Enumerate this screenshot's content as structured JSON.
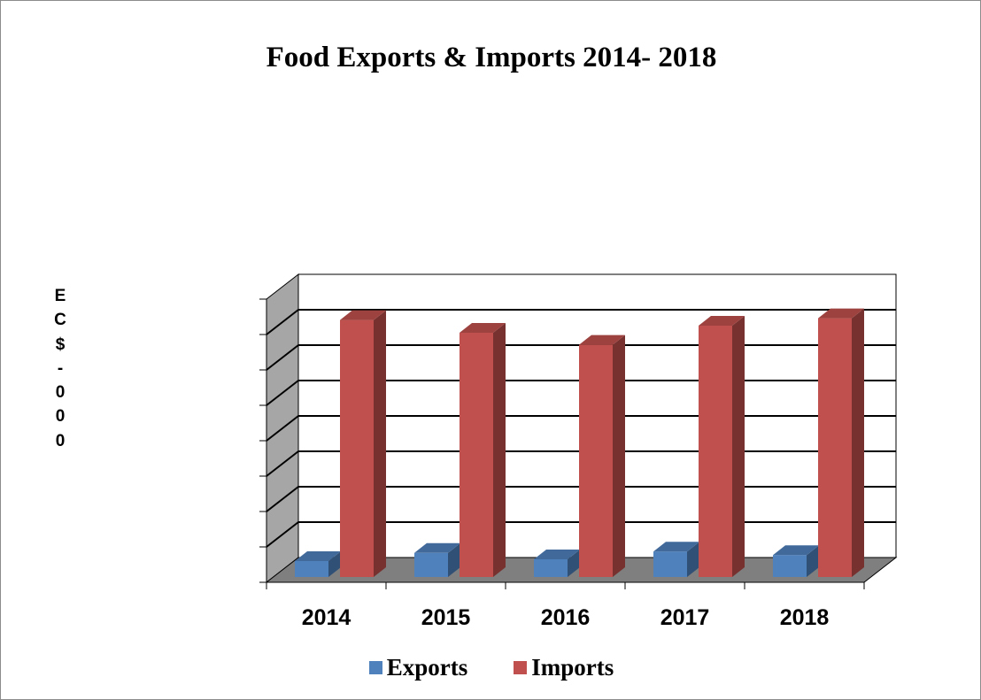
{
  "chart_data": {
    "type": "bar",
    "title": "Food Exports & Imports 2014- 2018",
    "xlabel": "",
    "ylabel": "EC$-000",
    "categories": [
      "2014",
      "2015",
      "2016",
      "2017",
      "2018"
    ],
    "series": [
      {
        "name": "Exports",
        "color": "#4f81bd",
        "values": [
          4.5,
          6.8,
          5.0,
          7.2,
          6.2
        ]
      },
      {
        "name": "Imports",
        "color": "#c0504d",
        "values": [
          72.6,
          69.0,
          65.6,
          71.0,
          73.1
        ]
      }
    ],
    "ylim": [
      0,
      80
    ],
    "y_tick_step": 10,
    "y_tick_labels_visible": false,
    "grid": true,
    "style": "3d-clustered-column",
    "legend_position": "bottom"
  }
}
